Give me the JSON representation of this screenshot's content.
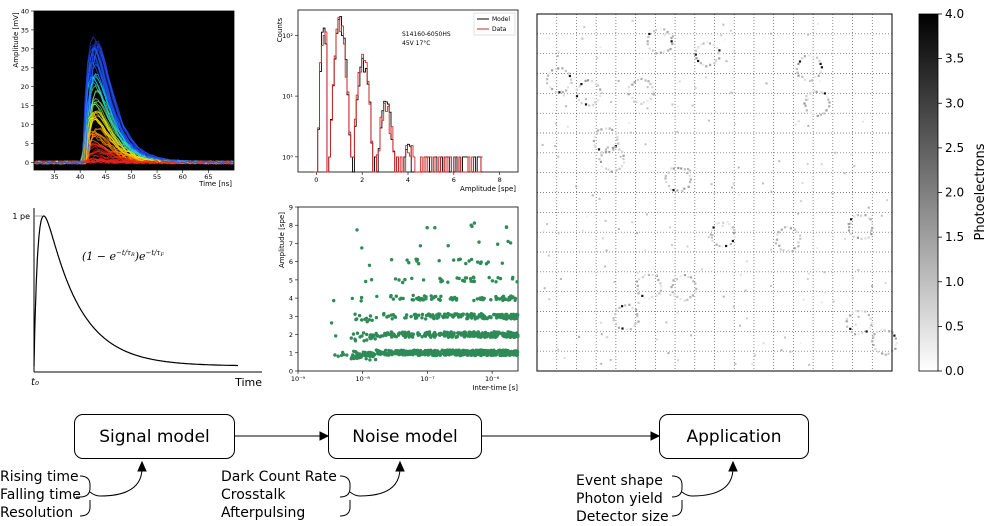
{
  "waveform": {
    "y_label": "Amplitude [mV]",
    "x_label": "Time [ns]",
    "y_ticks": [
      "0",
      "5",
      "10",
      "15",
      "20",
      "25",
      "30",
      "35",
      "40"
    ],
    "x_ticks": [
      "35",
      "40",
      "45",
      "50",
      "55",
      "60",
      "65"
    ]
  },
  "pulse": {
    "y_label": "1 pe",
    "x_label": "Time",
    "t0": "t₀",
    "formula": "(1 − e^{−t/τR}) e^{−t/τF}"
  },
  "histogram": {
    "y_label": "Counts",
    "x_label": "Amplitude [spe]",
    "y_ticks": [
      "10⁰",
      "10¹",
      "10²"
    ],
    "x_ticks": [
      "0",
      "2",
      "4",
      "6",
      "8"
    ],
    "legend": [
      "Model",
      "Data"
    ],
    "annotation": [
      "S14160-6050HS",
      "45V 17°C"
    ],
    "colors": {
      "model": "#000000",
      "data": "#d62728"
    }
  },
  "scatter": {
    "y_label": "Amplitude [spe]",
    "x_label": "Inter-time [s]",
    "y_ticks": [
      "0",
      "1",
      "2",
      "3",
      "4",
      "5",
      "6",
      "7",
      "8",
      "9"
    ],
    "x_ticks": [
      "10⁻⁹",
      "10⁻⁸",
      "10⁻⁷",
      "10⁻⁶"
    ],
    "color": "#2e8b57"
  },
  "heatmap": {
    "colorbar_label": "Photoelectrons",
    "colorbar_ticks": [
      "0.0",
      "0.5",
      "1.0",
      "1.5",
      "2.0",
      "2.5",
      "3.0",
      "3.5",
      "4.0"
    ]
  },
  "flow": {
    "boxes": [
      "Signal model",
      "Noise model",
      "Application"
    ],
    "lists": [
      [
        "Rising time",
        "Falling time",
        "Resolution"
      ],
      [
        "Dark Count Rate",
        "Crosstalk",
        "Afterpulsing"
      ],
      [
        "Event shape",
        "Photon yield",
        "Detector size"
      ]
    ]
  }
}
